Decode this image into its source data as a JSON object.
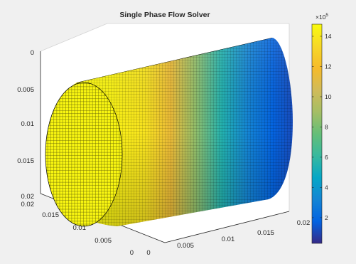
{
  "chart_data": {
    "type": "surface-3d",
    "title": "Single Phase Flow Solver",
    "xlabel": "",
    "ylabel": "",
    "zlabel": "",
    "x_ticks": [
      "0",
      "0.005",
      "0.01",
      "0.015",
      "0.02"
    ],
    "y_ticks": [
      "0",
      "0.005",
      "0.01",
      "0.015",
      "0.02"
    ],
    "z_ticks": [
      "0",
      "0.005",
      "0.01",
      "0.015",
      "0.02"
    ],
    "x_range": [
      0,
      0.02
    ],
    "y_range": [
      0,
      0.02
    ],
    "z_range": [
      0,
      0.02
    ],
    "colorbar": {
      "multiplier_base": "×10",
      "multiplier_exp": "5",
      "ticks": [
        "2",
        "4",
        "6",
        "8",
        "10",
        "12",
        "14"
      ],
      "tick_values": [
        2,
        4,
        6,
        8,
        10,
        12,
        14
      ],
      "range": [
        0.3,
        14.8
      ],
      "colormap": "parula"
    },
    "field": {
      "description_axis": "x",
      "values_along_x": [
        [
          0.0,
          14.6
        ],
        [
          0.25,
          14.5
        ],
        [
          0.4,
          13.8
        ],
        [
          0.5,
          11.5
        ],
        [
          0.6,
          8.5
        ],
        [
          0.7,
          5.5
        ],
        [
          0.8,
          3.2
        ],
        [
          0.9,
          1.8
        ],
        [
          1.0,
          1.0
        ]
      ]
    },
    "grid": true
  }
}
